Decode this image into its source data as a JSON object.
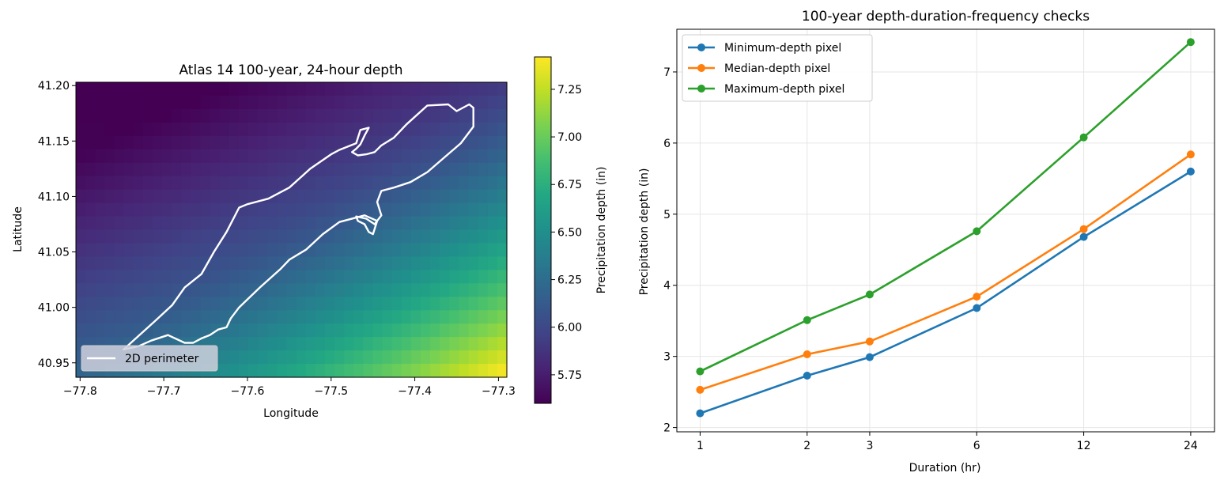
{
  "chart_data": [
    {
      "type": "heatmap",
      "title": "Atlas 14 100-year, 24-hour depth",
      "xlabel": "Longitude",
      "ylabel": "Latitude",
      "xlim": [
        -77.805,
        -77.29
      ],
      "ylim": [
        40.937,
        41.203
      ],
      "x_ticks": [
        -77.8,
        -77.7,
        -77.6,
        -77.5,
        -77.4,
        -77.3
      ],
      "x_tick_labels": [
        "−77.8",
        "−77.7",
        "−77.6",
        "−77.5",
        "−77.4",
        "−77.3"
      ],
      "y_ticks": [
        40.95,
        41.0,
        41.05,
        41.1,
        41.15,
        41.2
      ],
      "y_tick_labels": [
        "40.95",
        "41.00",
        "41.05",
        "41.10",
        "41.15",
        "41.20"
      ],
      "colorbar": {
        "label": "Precipitation depth (in)",
        "range": [
          5.6,
          7.42
        ],
        "ticks": [
          5.75,
          6.0,
          6.25,
          6.5,
          6.75,
          7.0,
          7.25
        ],
        "tick_labels": [
          "5.75",
          "6.00",
          "6.25",
          "6.50",
          "6.75",
          "7.00",
          "7.25"
        ],
        "colormap": "viridis"
      },
      "grid": {
        "nx": 45,
        "ny": 22,
        "approx_surface": "depth increases toward the southeast: ~5.6 in at the top-centre to ~7.4 in at the bottom-right corner"
      },
      "legend": {
        "entries": [
          "2D perimeter"
        ],
        "placement": "lower left",
        "line_color": "#ffffff"
      },
      "perimeter": {
        "name": "2D perimeter",
        "lon": [
          -77.748,
          -77.71,
          -77.69,
          -77.675,
          -77.655,
          -77.64,
          -77.625,
          -77.61,
          -77.6,
          -77.575,
          -77.55,
          -77.525,
          -77.5,
          -77.49,
          -77.47,
          -77.465,
          -77.455,
          -77.46,
          -77.465,
          -77.47,
          -77.475,
          -77.468,
          -77.458,
          -77.448,
          -77.44,
          -77.425,
          -77.41,
          -77.385,
          -77.36,
          -77.35,
          -77.335,
          -77.33,
          -77.33,
          -77.345,
          -77.365,
          -77.385,
          -77.405,
          -77.425,
          -77.44,
          -77.445,
          -77.44,
          -77.448,
          -77.458,
          -77.47,
          -77.468,
          -77.46,
          -77.455,
          -77.45,
          -77.445,
          -77.46,
          -77.49,
          -77.51,
          -77.53,
          -77.55,
          -77.56,
          -77.585,
          -77.61,
          -77.62,
          -77.625,
          -77.635,
          -77.645,
          -77.655,
          -77.665,
          -77.675,
          -77.695,
          -77.715,
          -77.73,
          -77.748
        ],
        "lat": [
          40.962,
          40.988,
          41.002,
          41.018,
          41.03,
          41.05,
          41.068,
          41.09,
          41.093,
          41.098,
          41.108,
          41.125,
          41.138,
          41.142,
          41.148,
          41.16,
          41.162,
          41.155,
          41.147,
          41.143,
          41.14,
          41.137,
          41.138,
          41.14,
          41.146,
          41.153,
          41.165,
          41.182,
          41.183,
          41.177,
          41.183,
          41.18,
          41.163,
          41.148,
          41.135,
          41.122,
          41.113,
          41.108,
          41.105,
          41.095,
          41.083,
          41.075,
          41.08,
          41.082,
          41.078,
          41.075,
          41.068,
          41.066,
          41.078,
          41.083,
          41.077,
          41.066,
          41.052,
          41.043,
          41.035,
          41.018,
          41.0,
          40.99,
          40.982,
          40.98,
          40.975,
          40.972,
          40.968,
          40.968,
          40.975,
          40.97,
          40.965,
          40.962
        ]
      }
    },
    {
      "type": "line",
      "title": "100-year depth-duration-frequency checks",
      "xlabel": "Duration (hr)",
      "ylabel": "Precipitation depth (in)",
      "x_scale": "log",
      "x": [
        1,
        2,
        3,
        6,
        12,
        24
      ],
      "x_tick_labels": [
        "1",
        "2",
        "3",
        "6",
        "12",
        "24"
      ],
      "xlim": [
        0.86,
        28
      ],
      "ylim": [
        1.94,
        7.6
      ],
      "y_ticks": [
        2,
        3,
        4,
        5,
        6,
        7
      ],
      "grid": true,
      "legend": "upper left",
      "series": [
        {
          "name": "Minimum-depth pixel",
          "color": "#1f77b4",
          "values": [
            2.2,
            2.73,
            2.99,
            3.68,
            4.68,
            5.6
          ]
        },
        {
          "name": "Median-depth pixel",
          "color": "#ff7f0e",
          "values": [
            2.53,
            3.03,
            3.21,
            3.84,
            4.79,
            5.84
          ]
        },
        {
          "name": "Maximum-depth pixel",
          "color": "#2ca02c",
          "values": [
            2.79,
            3.51,
            3.87,
            4.76,
            6.08,
            7.42
          ]
        }
      ]
    }
  ]
}
